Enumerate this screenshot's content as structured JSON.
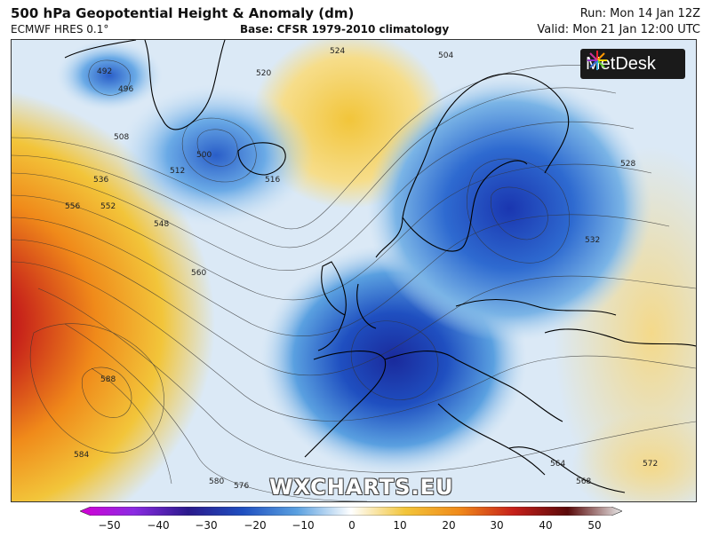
{
  "header": {
    "title": "500 hPa Geopotential Height & Anomaly (dm)",
    "model": "ECMWF HRES 0.1°",
    "base": "Base: CFSR 1979-2010 climatology",
    "run": "Run: Mon 14 Jan 12Z",
    "valid": "Valid: Mon 21 Jan 12:00 UTC"
  },
  "brand": {
    "logo_text": "MetDesk",
    "watermark": "WXCHARTS.EU"
  },
  "contour_labels": [
    "492",
    "496",
    "500",
    "504",
    "508",
    "512",
    "516",
    "520",
    "524",
    "528",
    "532",
    "536",
    "548",
    "552",
    "556",
    "560",
    "564",
    "568",
    "572",
    "576",
    "580",
    "584",
    "588"
  ],
  "colorbar": {
    "ticks": [
      "−50",
      "−40",
      "−30",
      "−20",
      "−10",
      "0",
      "10",
      "20",
      "30",
      "40",
      "50"
    ],
    "colors": [
      "#d400d4",
      "#8a2be2",
      "#2a1a8c",
      "#1f4fc0",
      "#5aa0e0",
      "#ffffff",
      "#f2c53a",
      "#f08a1a",
      "#c6201a",
      "#5a0a0a",
      "#e8e8e8"
    ]
  }
}
